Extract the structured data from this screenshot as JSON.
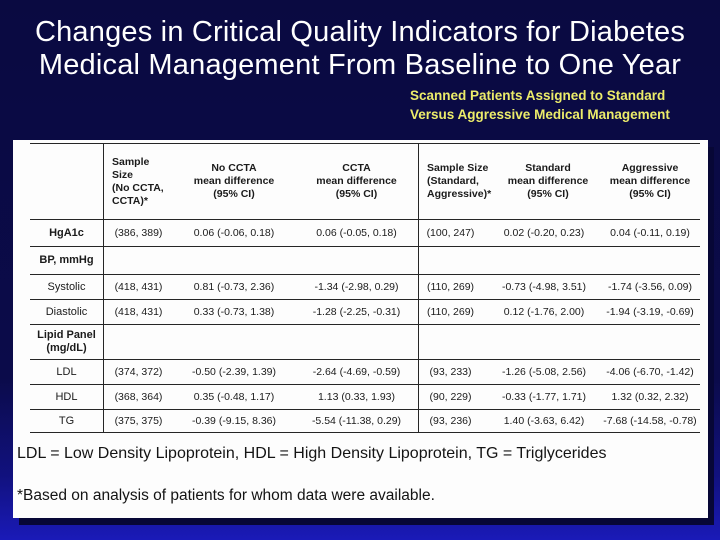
{
  "slide": {
    "title_line1": "Changes in Critical Quality Indicators for Diabetes",
    "title_line2": "Medical Management From Baseline to One Year",
    "subtitle_line1": "Scanned Patients Assigned to Standard",
    "subtitle_line2": "Versus Aggressive Medical Management"
  },
  "colors": {
    "background_top": "#0A0A41",
    "background_bottom": "#1A1AB8",
    "title_text": "#FFFFFF",
    "subtitle_text": "#ECEC6A",
    "panel": "#FDFDFD",
    "table_line": "#262626",
    "table_text": "#1B1B1B"
  },
  "table": {
    "header": [
      "",
      "Sample Size\n(No CCTA,\nCCTA)*",
      "No CCTA\nmean difference\n(95% CI)",
      "CCTA\nmean difference\n(95% CI)",
      "Sample Size\n(Standard,\nAggressive)*",
      "Standard\nmean difference\n(95% CI)",
      "Aggressive\nmean difference\n(95% CI)"
    ],
    "rows": [
      {
        "label": "HgA1c",
        "bold": true,
        "cells": [
          "(386, 389)",
          "0.06 (-0.06, 0.18)",
          "0.06 (-0.05, 0.18)",
          "(100, 247)",
          "0.02 (-0.20, 0.23)",
          "0.04 (-0.11, 0.19)"
        ]
      },
      {
        "label": "BP, mmHg",
        "bold": true,
        "cells": [
          "",
          "",
          "",
          "",
          "",
          ""
        ]
      },
      {
        "label": "Systolic",
        "bold": false,
        "cells": [
          "(418, 431)",
          "0.81 (-0.73, 2.36)",
          "-1.34 (-2.98, 0.29)",
          "(110, 269)",
          "-0.73 (-4.98, 3.51)",
          "-1.74 (-3.56, 0.09)"
        ]
      },
      {
        "label": "Diastolic",
        "bold": false,
        "cells": [
          "(418, 431)",
          "0.33 (-0.73, 1.38)",
          "-1.28 (-2.25, -0.31)",
          "(110, 269)",
          "0.12 (-1.76, 2.00)",
          "-1.94 (-3.19, -0.69)"
        ]
      },
      {
        "label": "Lipid Panel\n(mg/dL)",
        "bold": true,
        "cells": [
          "",
          "",
          "",
          "",
          "",
          ""
        ]
      },
      {
        "label": "LDL",
        "bold": false,
        "cells": [
          "(374, 372)",
          "-0.50 (-2.39, 1.39)",
          "-2.64 (-4.69, -0.59)",
          "(93, 233)",
          "-1.26 (-5.08, 2.56)",
          "-4.06 (-6.70, -1.42)"
        ]
      },
      {
        "label": "HDL",
        "bold": false,
        "cells": [
          "(368, 364)",
          "0.35 (-0.48, 1.17)",
          "1.13 (0.33, 1.93)",
          "(90, 229)",
          "-0.33 (-1.77, 1.71)",
          "1.32 (0.32, 2.32)"
        ]
      },
      {
        "label": "TG",
        "bold": false,
        "cells": [
          "(375, 375)",
          "-0.39 (-9.15, 8.36)",
          "-5.54 (-11.38, 0.29)",
          "(93, 236)",
          "1.40 (-3.63, 6.42)",
          "-7.68 (-14.58, -0.78)"
        ]
      }
    ]
  },
  "footnotes": {
    "abbreviations": "LDL = Low Density Lipoprotein, HDL = High Density Lipoprotein, TG = Triglycerides",
    "asterisk": "*Based on analysis of patients for whom data were available."
  }
}
